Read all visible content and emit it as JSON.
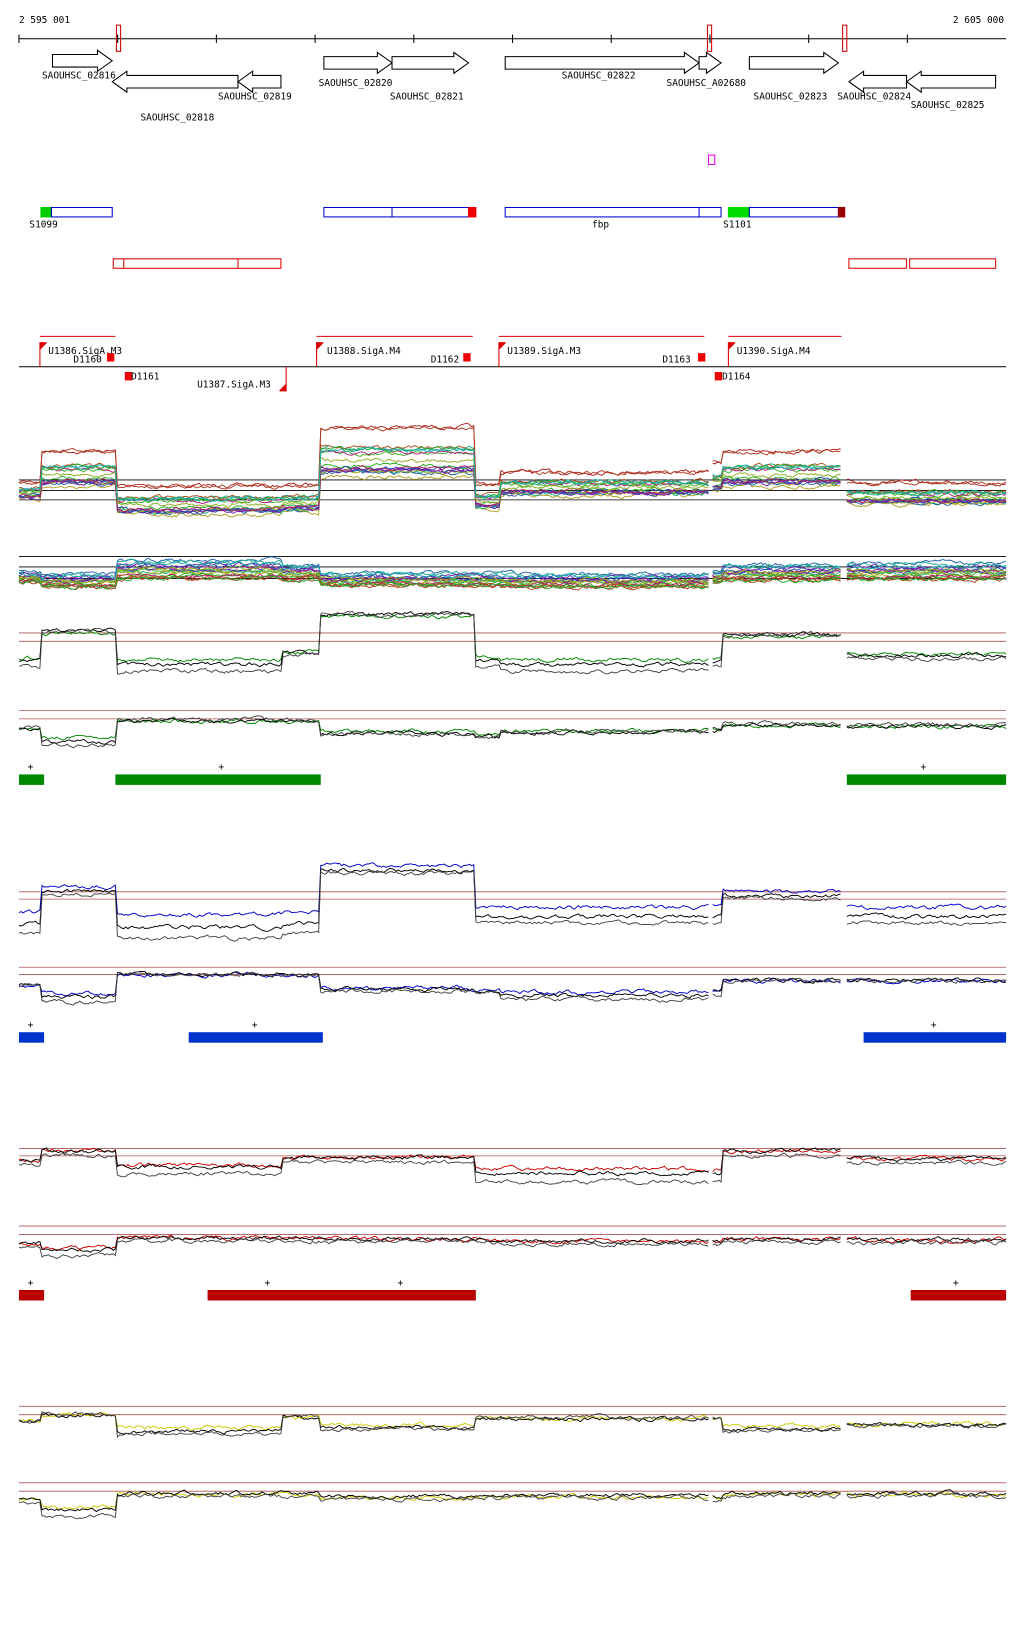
{
  "coordinates": {
    "start": "2 595 001",
    "end": "2 605 000"
  },
  "genes": [
    "SAOUHSC_02816",
    "SAOUHSC_02818",
    "SAOUHSC_02819",
    "SAOUHSC_02820",
    "SAOUHSC_02821",
    "SAOUHSC_02822",
    "SAOUHSC_A02680",
    "SAOUHSC_02823",
    "SAOUHSC_02824",
    "SAOUHSC_02825"
  ],
  "segments": [
    "S1099",
    "fbp",
    "S1101"
  ],
  "promoters": [
    "U1386.SigA.M3",
    "U1387.SigA.M3",
    "U1388.SigA.M4",
    "U1389.SigA.M3",
    "U1390.SigA.M4"
  ],
  "terminators": [
    "D1160",
    "D1161",
    "D1162",
    "D1163",
    "D1164"
  ],
  "condition_marks": {
    "green": [
      "+",
      "+",
      "+"
    ],
    "blue": [
      "+",
      "+",
      "+"
    ],
    "red": [
      "+",
      "+",
      "+",
      "+"
    ]
  }
}
